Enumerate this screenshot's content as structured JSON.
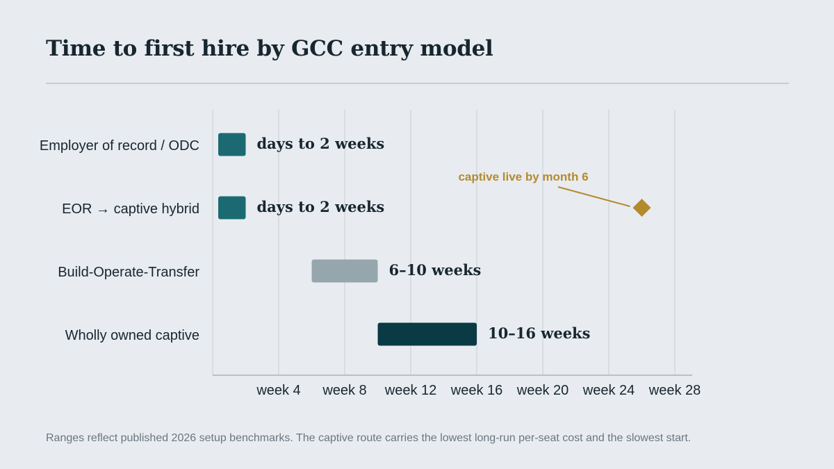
{
  "title": "Time to first hire by GCC entry model",
  "footnote": "Ranges reflect published 2026 setup benchmarks. The captive route carries the lowest long-run per-seat cost and the slowest start.",
  "chart_data": {
    "type": "bar",
    "orientation": "horizontal-range",
    "title": "Time to first hire by GCC entry model",
    "xlabel": "",
    "ylabel": "",
    "xlim": [
      0,
      29
    ],
    "xticks": [
      4,
      8,
      12,
      16,
      20,
      24,
      28
    ],
    "xtick_labels": [
      "week 4",
      "week 8",
      "week 12",
      "week 16",
      "week 20",
      "week 24",
      "week 28"
    ],
    "grid": true,
    "categories": [
      "Employer of record / ODC",
      "EOR → captive hybrid",
      "Build-Operate-Transfer",
      "Wholly owned captive"
    ],
    "ranges": [
      {
        "start": 0,
        "end": 2,
        "label": "days to 2 weeks",
        "color": "#1b6a72"
      },
      {
        "start": 0,
        "end": 2,
        "label": "days to 2 weeks",
        "color": "#1b6a72"
      },
      {
        "start": 6,
        "end": 10,
        "label": "6–10 weeks",
        "color": "#96a6ad"
      },
      {
        "start": 10,
        "end": 16,
        "label": "10–16 weeks",
        "color": "#0a3a44"
      }
    ],
    "markers": [
      {
        "category_index": 1,
        "x": 26,
        "shape": "diamond",
        "color": "#b38a2e",
        "annotation": "captive live by month 6"
      }
    ],
    "colors": {
      "grid": "#d3d8dd",
      "axis": "#b9c0c6",
      "text": "#17262f",
      "annotation": "#b38a2e"
    }
  }
}
